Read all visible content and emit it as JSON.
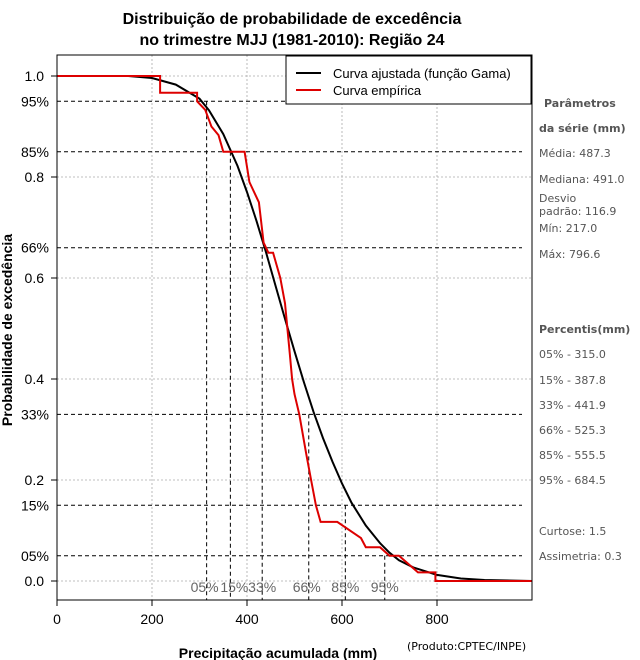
{
  "chart_data": {
    "type": "line",
    "title_line1": "Distribuição de probabilidade de excedência",
    "title_line2": "no trimestre MJJ (1981-2010): Região 24",
    "xlabel": "Precipitação acumulada (mm)",
    "ylabel": "Probabilidade de excedência",
    "xlim": [
      0,
      1000
    ],
    "ylim": [
      0,
      1
    ],
    "x_ticks": [
      0,
      200,
      400,
      600,
      800
    ],
    "x_tick_labels": [
      "0",
      "200",
      "400",
      "600",
      "800"
    ],
    "y_ticks": [
      0,
      0.2,
      0.4,
      0.6,
      0.8,
      1.0
    ],
    "y_tick_labels": [
      "0.0",
      "0.2",
      "0.4",
      "0.6",
      "0.8",
      "1.0"
    ],
    "pct_y_values": [
      0.95,
      0.85,
      0.66,
      0.33,
      0.15,
      0.05
    ],
    "pct_y_labels": [
      "95%",
      "85%",
      "66%",
      "33%",
      "15%",
      "05%"
    ],
    "percentile_markers": [
      {
        "label": "05%",
        "x": 315.0,
        "p": 0.95
      },
      {
        "label": "15%",
        "x": 365.0,
        "p": 0.85
      },
      {
        "label": "33%",
        "x": 432.0,
        "p": 0.66
      },
      {
        "label": "66%",
        "x": 530.0,
        "p": 0.33
      },
      {
        "label": "85%",
        "x": 607.0,
        "p": 0.15
      },
      {
        "label": "95%",
        "x": 690.0,
        "p": 0.05
      }
    ],
    "legend_position": "top-right",
    "grid": true,
    "series": [
      {
        "name": "Curva ajustada (função Gama)",
        "color": "#000000",
        "x": [
          0,
          150,
          200,
          250,
          300,
          320,
          350,
          380,
          400,
          420,
          440,
          460,
          480,
          500,
          520,
          540,
          560,
          580,
          600,
          620,
          650,
          680,
          700,
          720,
          750,
          800,
          850,
          900,
          1000
        ],
        "y": [
          1.0,
          1.0,
          0.996,
          0.983,
          0.955,
          0.932,
          0.885,
          0.822,
          0.77,
          0.713,
          0.651,
          0.585,
          0.519,
          0.455,
          0.393,
          0.335,
          0.283,
          0.236,
          0.193,
          0.155,
          0.11,
          0.075,
          0.056,
          0.041,
          0.027,
          0.012,
          0.005,
          0.002,
          0.0
        ]
      },
      {
        "name": "Curva empírica",
        "color": "#dd0000",
        "x": [
          0,
          217,
          217,
          295,
          295,
          312,
          325,
          340,
          350,
          365,
          380,
          395,
          405,
          415,
          425,
          435,
          445,
          455,
          470,
          480,
          490,
          495,
          500,
          510,
          525,
          535,
          545,
          555,
          585,
          590,
          640,
          650,
          680,
          700,
          720,
          760,
          796.6,
          796.6,
          1000
        ],
        "y": [
          1.0,
          1.0,
          0.967,
          0.967,
          0.95,
          0.933,
          0.9,
          0.883,
          0.85,
          0.85,
          0.85,
          0.85,
          0.79,
          0.77,
          0.75,
          0.67,
          0.65,
          0.65,
          0.6,
          0.55,
          0.45,
          0.4,
          0.37,
          0.33,
          0.25,
          0.2,
          0.15,
          0.117,
          0.117,
          0.117,
          0.085,
          0.067,
          0.067,
          0.05,
          0.05,
          0.017,
          0.017,
          0.0,
          0.0
        ]
      }
    ]
  },
  "sidebar": {
    "params_header_1": "Parâmetros",
    "params_header_2": "da série (mm)",
    "media": "Média: 487.3",
    "mediana": "Mediana: 491.0",
    "desvio_1": "Desvio",
    "desvio_2": "padrão: 116.9",
    "min": "Mín: 217.0",
    "max": "Máx: 796.6",
    "percentis_header": "Percentis(mm)",
    "p05": "05% - 315.0",
    "p15": "15% - 387.8",
    "p33": "33% - 441.9",
    "p66": "66% - 525.3",
    "p85": "85% - 555.5",
    "p95": "95% - 684.5",
    "curtose": "Curtose: 1.5",
    "assimetria": "Assimetria: 0.3"
  },
  "credit": "(Produto:CPTEC/INPE)"
}
